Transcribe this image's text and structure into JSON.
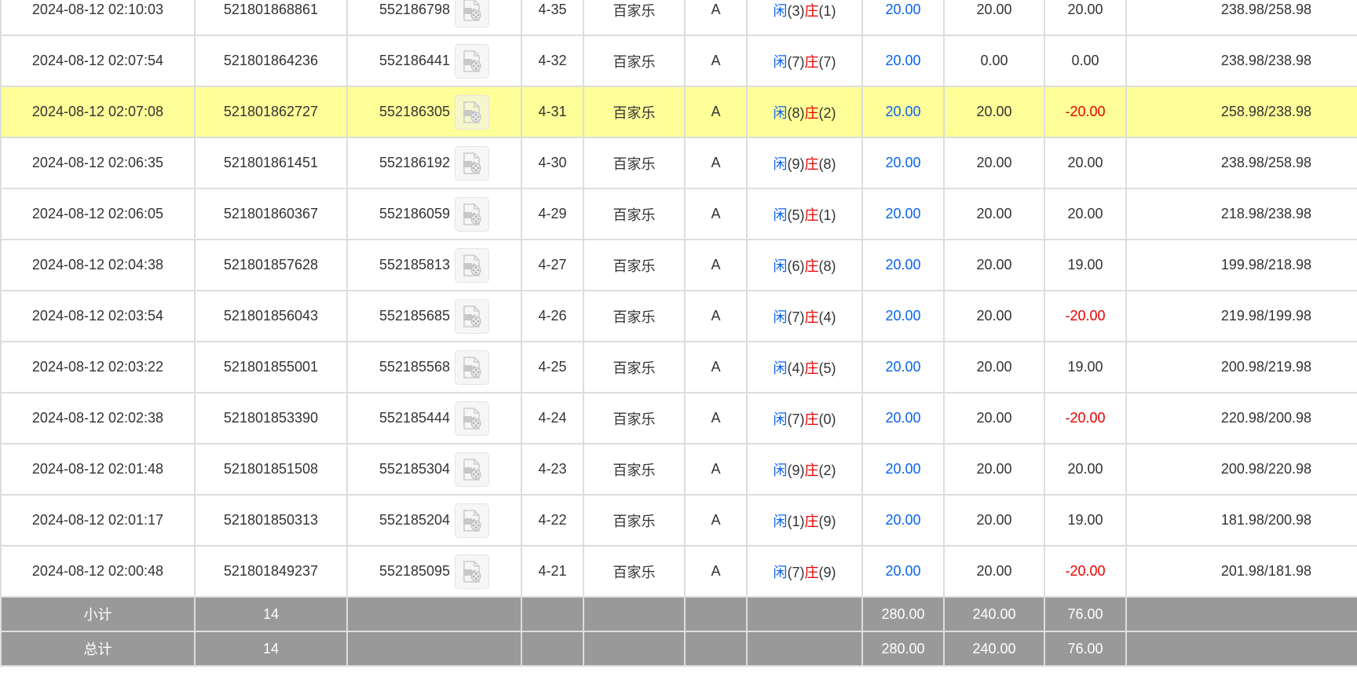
{
  "colors": {
    "blue": "#0a63f0",
    "red": "#e60000",
    "highlight": "#ffff99",
    "summary_bg": "#999999"
  },
  "rows": [
    {
      "time": "2024-08-12 02:10:03",
      "order": "521801868861",
      "bet": "552186798",
      "table": "4-35",
      "game": "百家乐",
      "room": "A",
      "player_label": "闲",
      "player": "(3)",
      "banker_label": "庄",
      "banker": "(1)",
      "bet_amount": "20.00",
      "valid": "20.00",
      "win": "20.00",
      "balance": "238.98/258.98",
      "neg": false
    },
    {
      "time": "2024-08-12 02:07:54",
      "order": "521801864236",
      "bet": "552186441",
      "table": "4-32",
      "game": "百家乐",
      "room": "A",
      "player_label": "闲",
      "player": "(7)",
      "banker_label": "庄",
      "banker": "(7)",
      "bet_amount": "20.00",
      "valid": "0.00",
      "win": "0.00",
      "balance": "238.98/238.98",
      "neg": false
    },
    {
      "time": "2024-08-12 02:07:08",
      "order": "521801862727",
      "bet": "552186305",
      "table": "4-31",
      "game": "百家乐",
      "room": "A",
      "player_label": "闲",
      "player": "(8)",
      "banker_label": "庄",
      "banker": "(2)",
      "bet_amount": "20.00",
      "valid": "20.00",
      "win": "-20.00",
      "balance": "258.98/238.98",
      "neg": true,
      "highlight": true
    },
    {
      "time": "2024-08-12 02:06:35",
      "order": "521801861451",
      "bet": "552186192",
      "table": "4-30",
      "game": "百家乐",
      "room": "A",
      "player_label": "闲",
      "player": "(9)",
      "banker_label": "庄",
      "banker": "(8)",
      "bet_amount": "20.00",
      "valid": "20.00",
      "win": "20.00",
      "balance": "238.98/258.98",
      "neg": false
    },
    {
      "time": "2024-08-12 02:06:05",
      "order": "521801860367",
      "bet": "552186059",
      "table": "4-29",
      "game": "百家乐",
      "room": "A",
      "player_label": "闲",
      "player": "(5)",
      "banker_label": "庄",
      "banker": "(1)",
      "bet_amount": "20.00",
      "valid": "20.00",
      "win": "20.00",
      "balance": "218.98/238.98",
      "neg": false
    },
    {
      "time": "2024-08-12 02:04:38",
      "order": "521801857628",
      "bet": "552185813",
      "table": "4-27",
      "game": "百家乐",
      "room": "A",
      "player_label": "闲",
      "player": "(6)",
      "banker_label": "庄",
      "banker": "(8)",
      "bet_amount": "20.00",
      "valid": "20.00",
      "win": "19.00",
      "balance": "199.98/218.98",
      "neg": false
    },
    {
      "time": "2024-08-12 02:03:54",
      "order": "521801856043",
      "bet": "552185685",
      "table": "4-26",
      "game": "百家乐",
      "room": "A",
      "player_label": "闲",
      "player": "(7)",
      "banker_label": "庄",
      "banker": "(4)",
      "bet_amount": "20.00",
      "valid": "20.00",
      "win": "-20.00",
      "balance": "219.98/199.98",
      "neg": true
    },
    {
      "time": "2024-08-12 02:03:22",
      "order": "521801855001",
      "bet": "552185568",
      "table": "4-25",
      "game": "百家乐",
      "room": "A",
      "player_label": "闲",
      "player": "(4)",
      "banker_label": "庄",
      "banker": "(5)",
      "bet_amount": "20.00",
      "valid": "20.00",
      "win": "19.00",
      "balance": "200.98/219.98",
      "neg": false
    },
    {
      "time": "2024-08-12 02:02:38",
      "order": "521801853390",
      "bet": "552185444",
      "table": "4-24",
      "game": "百家乐",
      "room": "A",
      "player_label": "闲",
      "player": "(7)",
      "banker_label": "庄",
      "banker": "(0)",
      "bet_amount": "20.00",
      "valid": "20.00",
      "win": "-20.00",
      "balance": "220.98/200.98",
      "neg": true
    },
    {
      "time": "2024-08-12 02:01:48",
      "order": "521801851508",
      "bet": "552185304",
      "table": "4-23",
      "game": "百家乐",
      "room": "A",
      "player_label": "闲",
      "player": "(9)",
      "banker_label": "庄",
      "banker": "(2)",
      "bet_amount": "20.00",
      "valid": "20.00",
      "win": "20.00",
      "balance": "200.98/220.98",
      "neg": false
    },
    {
      "time": "2024-08-12 02:01:17",
      "order": "521801850313",
      "bet": "552185204",
      "table": "4-22",
      "game": "百家乐",
      "room": "A",
      "player_label": "闲",
      "player": "(1)",
      "banker_label": "庄",
      "banker": "(9)",
      "bet_amount": "20.00",
      "valid": "20.00",
      "win": "19.00",
      "balance": "181.98/200.98",
      "neg": false
    },
    {
      "time": "2024-08-12 02:00:48",
      "order": "521801849237",
      "bet": "552185095",
      "table": "4-21",
      "game": "百家乐",
      "room": "A",
      "player_label": "闲",
      "player": "(7)",
      "banker_label": "庄",
      "banker": "(9)",
      "bet_amount": "20.00",
      "valid": "20.00",
      "win": "-20.00",
      "balance": "201.98/181.98",
      "neg": true
    }
  ],
  "subtotal": {
    "label": "小计",
    "count": "14",
    "bet_amount": "280.00",
    "valid": "240.00",
    "win": "76.00"
  },
  "total": {
    "label": "总计",
    "count": "14",
    "bet_amount": "280.00",
    "valid": "240.00",
    "win": "76.00"
  }
}
